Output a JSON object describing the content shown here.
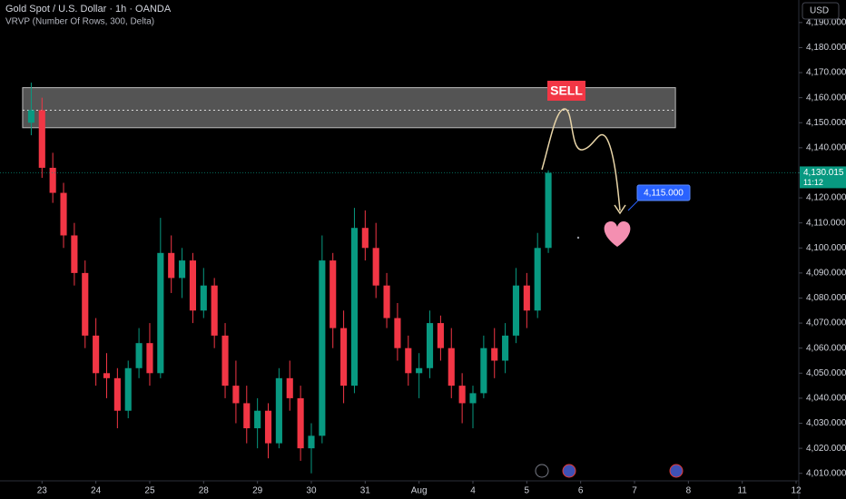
{
  "chart_data": {
    "type": "candlestick",
    "title": "Gold Spot / U.S. Dollar · 1h · OANDA",
    "subtitle": "VRVP (Number Of Rows, 300, Delta)",
    "currency": "USD",
    "up_color": "#089981",
    "down_color": "#f23645",
    "x": [
      -0.2,
      0,
      0.2,
      0.4,
      0.6,
      0.8,
      1,
      1.2,
      1.4,
      1.6,
      1.8,
      2,
      2.2,
      2.4,
      2.6,
      2.8,
      3,
      3.2,
      3.4,
      3.6,
      3.8,
      4,
      4.2,
      4.4,
      4.6,
      4.8,
      5,
      5.2,
      5.4,
      5.6,
      5.8,
      6,
      6.2,
      6.4,
      6.6,
      6.8,
      7,
      7.2,
      7.4,
      7.6,
      7.8,
      8,
      8.2,
      8.4,
      8.6,
      8.8,
      9,
      9.2,
      9.4
    ],
    "open": [
      4150,
      4155,
      4132,
      4122,
      4105,
      4090,
      4065,
      4050,
      4048,
      4035,
      4052,
      4062,
      4050,
      4098,
      4088,
      4095,
      4075,
      4085,
      4065,
      4045,
      4038,
      4028,
      4035,
      4022,
      4048,
      4040,
      4020,
      4025,
      4095,
      4068,
      4045,
      4108,
      4100,
      4085,
      4072,
      4060,
      4050,
      4052,
      4070,
      4060,
      4045,
      4038,
      4042,
      4060,
      4055,
      4065,
      4085,
      4075,
      4100
    ],
    "high": [
      4166,
      4160,
      4138,
      4126,
      4110,
      4095,
      4072,
      4058,
      4052,
      4055,
      4068,
      4070,
      4112,
      4105,
      4100,
      4098,
      4092,
      4088,
      4070,
      4055,
      4045,
      4040,
      4038,
      4052,
      4055,
      4045,
      4030,
      4105,
      4098,
      4075,
      4116,
      4115,
      4110,
      4090,
      4078,
      4065,
      4058,
      4075,
      4073,
      4068,
      4050,
      4045,
      4065,
      4068,
      4070,
      4092,
      4090,
      4106,
      4131
    ],
    "low": [
      4145,
      4128,
      4118,
      4100,
      4085,
      4060,
      4045,
      4040,
      4028,
      4032,
      4048,
      4045,
      4048,
      4082,
      4080,
      4070,
      4072,
      4060,
      4040,
      4030,
      4022,
      4020,
      4016,
      4020,
      4035,
      4015,
      4010,
      4022,
      4060,
      4038,
      4042,
      4095,
      4080,
      4068,
      4055,
      4045,
      4040,
      4048,
      4055,
      4040,
      4030,
      4028,
      4040,
      4048,
      4050,
      4062,
      4068,
      4072,
      4098
    ],
    "close": [
      4155,
      4132,
      4122,
      4105,
      4090,
      4065,
      4050,
      4048,
      4035,
      4052,
      4062,
      4050,
      4098,
      4088,
      4095,
      4075,
      4085,
      4065,
      4045,
      4038,
      4028,
      4035,
      4022,
      4048,
      4040,
      4020,
      4025,
      4095,
      4068,
      4045,
      4108,
      4100,
      4085,
      4072,
      4060,
      4050,
      4052,
      4070,
      4060,
      4045,
      4038,
      4042,
      4060,
      4055,
      4065,
      4085,
      4075,
      4100,
      4130
    ],
    "xlim": [
      -0.78,
      14.05
    ],
    "ylim": [
      4007,
      4199
    ],
    "xticks": [
      {
        "value": 0,
        "label": "23"
      },
      {
        "value": 1,
        "label": "24"
      },
      {
        "value": 2,
        "label": "25"
      },
      {
        "value": 3,
        "label": "28"
      },
      {
        "value": 4,
        "label": "29"
      },
      {
        "value": 5,
        "label": "30"
      },
      {
        "value": 6,
        "label": "31"
      },
      {
        "value": 7,
        "label": "Aug"
      },
      {
        "value": 8,
        "label": "4"
      },
      {
        "value": 9,
        "label": "5"
      },
      {
        "value": 10,
        "label": "6"
      },
      {
        "value": 11,
        "label": "7"
      },
      {
        "value": 12,
        "label": "8"
      },
      {
        "value": 13,
        "label": "11"
      },
      {
        "value": 14,
        "label": "12"
      }
    ],
    "yticks": [
      {
        "value": 4010,
        "label": "4,010.000"
      },
      {
        "value": 4020,
        "label": "4,020.000"
      },
      {
        "value": 4030,
        "label": "4,030.000"
      },
      {
        "value": 4040,
        "label": "4,040.000"
      },
      {
        "value": 4050,
        "label": "4,050.000"
      },
      {
        "value": 4060,
        "label": "4,060.000"
      },
      {
        "value": 4070,
        "label": "4,070.000"
      },
      {
        "value": 4080,
        "label": "4,080.000"
      },
      {
        "value": 4090,
        "label": "4,090.000"
      },
      {
        "value": 4100,
        "label": "4,100.000"
      },
      {
        "value": 4110,
        "label": "4,110.000"
      },
      {
        "value": 4120,
        "label": "4,120.000"
      },
      {
        "value": 4130,
        "label": "4,130.000"
      },
      {
        "value": 4140,
        "label": "4,140.000"
      },
      {
        "value": 4150,
        "label": "4,150.000"
      },
      {
        "value": 4160,
        "label": "4,160.000"
      },
      {
        "value": 4170,
        "label": "4,170.000"
      },
      {
        "value": 4180,
        "label": "4,180.000"
      },
      {
        "value": 4190,
        "label": "4,190.000"
      }
    ],
    "zone": {
      "low": 4148,
      "high": 4164,
      "mid": 4155,
      "x_start": -0.36,
      "x_end": 11.76
    },
    "last_price": {
      "value": 4130.015,
      "label": "4,130.015"
    },
    "countdown": "11:12",
    "annotations": {
      "sell": "SELL",
      "target": "4,115.000"
    }
  }
}
